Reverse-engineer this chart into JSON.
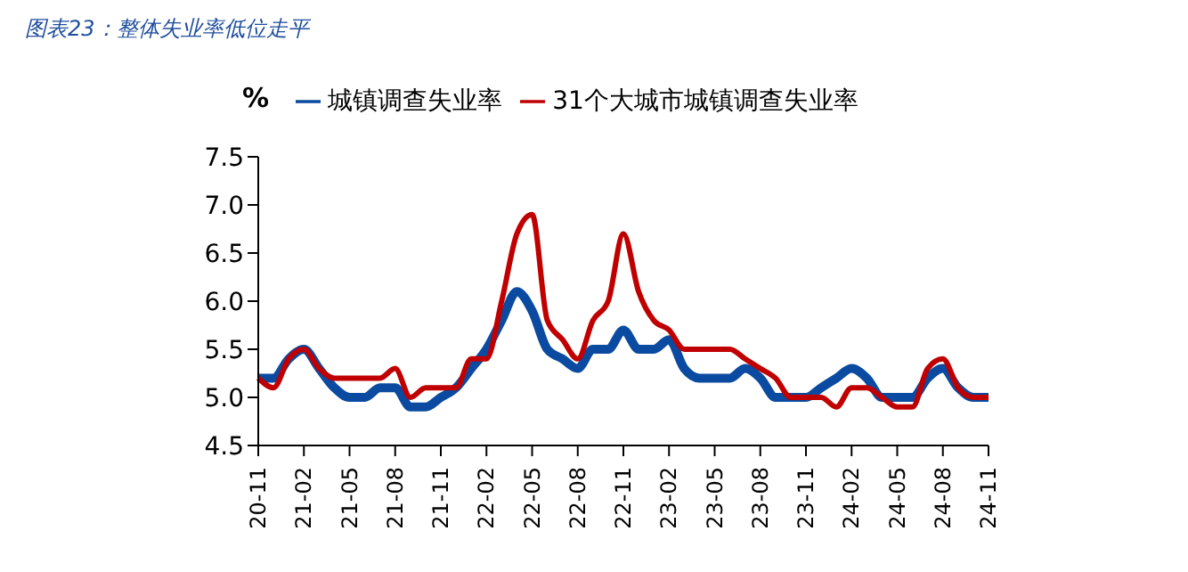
{
  "chart_data": {
    "type": "line",
    "title": "图表23：整体失业率低位走平",
    "ylabel": "%",
    "categories": [
      "20-11",
      null,
      null,
      "21-02",
      null,
      null,
      "21-05",
      null,
      null,
      "21-08",
      null,
      null,
      "21-11",
      null,
      null,
      "22-02",
      null,
      null,
      "22-05",
      null,
      null,
      "22-08",
      null,
      null,
      "22-11",
      null,
      null,
      "23-02",
      null,
      null,
      "23-05",
      null,
      null,
      "23-08",
      null,
      null,
      "23-11",
      null,
      null,
      "24-02",
      null,
      null,
      "24-05",
      null,
      null,
      "24-08",
      null,
      null,
      "24-11"
    ],
    "series": [
      {
        "name": "城镇调查失业率",
        "color": "#0a4aa0",
        "values": [
          5.2,
          5.2,
          5.4,
          5.5,
          5.3,
          5.1,
          5.0,
          5.0,
          5.1,
          5.1,
          4.9,
          4.9,
          5.0,
          5.1,
          5.3,
          5.5,
          5.8,
          6.1,
          5.9,
          5.5,
          5.4,
          5.3,
          5.5,
          5.5,
          5.7,
          5.5,
          5.5,
          5.6,
          5.3,
          5.2,
          5.2,
          5.2,
          5.3,
          5.2,
          5.0,
          5.0,
          5.0,
          5.1,
          5.2,
          5.3,
          5.2,
          5.0,
          5.0,
          5.0,
          5.2,
          5.3,
          5.1,
          5.0,
          5.0
        ]
      },
      {
        "name": "31个大城市城镇调查失业率",
        "color": "#c00000",
        "values": [
          5.2,
          5.1,
          5.4,
          5.5,
          5.3,
          5.2,
          5.2,
          5.2,
          5.2,
          5.3,
          5.0,
          5.1,
          5.1,
          5.1,
          5.4,
          5.4,
          6.0,
          6.7,
          6.9,
          5.8,
          5.6,
          5.4,
          5.8,
          6.0,
          6.7,
          6.1,
          5.8,
          5.7,
          5.5,
          5.5,
          5.5,
          5.5,
          5.4,
          5.3,
          5.2,
          5.0,
          5.0,
          5.0,
          4.9,
          5.1,
          5.1,
          5.0,
          4.9,
          4.9,
          5.3,
          5.4,
          5.1,
          5.0,
          5.0
        ]
      }
    ],
    "ylim": [
      4.5,
      7.5
    ],
    "yticks": [
      4.5,
      {
        "value": 5,
        "label": "5.0"
      },
      5.5,
      {
        "value": 6,
        "label": "6.0"
      },
      6.5,
      {
        "value": 7,
        "label": "7.0"
      },
      7.5
    ],
    "grid": false,
    "legend": "top",
    "marker": "none",
    "line_style": "solid"
  }
}
